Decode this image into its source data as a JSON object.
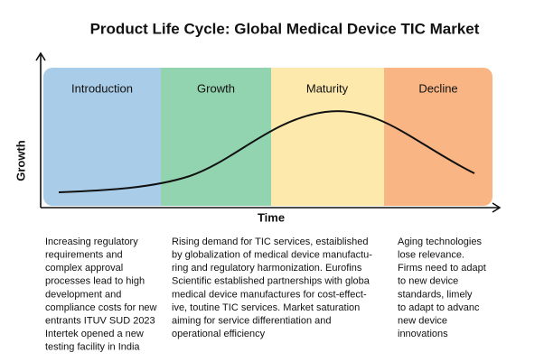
{
  "title": "Product Life Cycle: Global Medical Device TIC Market",
  "axes": {
    "y_label": "Growth",
    "x_label": "Time"
  },
  "stages": [
    {
      "label": "Introduction",
      "description": [
        "Increasing regulatory",
        "requirements and",
        "complex approval",
        "processes lead to high",
        "development and",
        "compliance costs for new",
        "entrants ITUV SUD 2023",
        "Intertek opened a new",
        "testing facility in India"
      ]
    },
    {
      "label": "Growth",
      "description": [
        "Rising demand for TIC services, estaiblished",
        "by globalization of medical device manufactu-",
        "ring and regulatory harmonization. Eurofins",
        "Scientific established partnerships with globa",
        "medical device manufactures for cost-effect-",
        "ive, toutine TIC services. Market saturation",
        "aiming for service differentiation and",
        "operational efficiency"
      ]
    },
    {
      "label": "Maturity",
      "description": []
    },
    {
      "label": "Decline",
      "description": [
        "Aging technologies",
        "lose relevance.",
        "Firms need to adapt",
        "to new device",
        "standards, limely",
        "to adapt to advanc",
        "new device",
        "innovations"
      ]
    }
  ]
}
